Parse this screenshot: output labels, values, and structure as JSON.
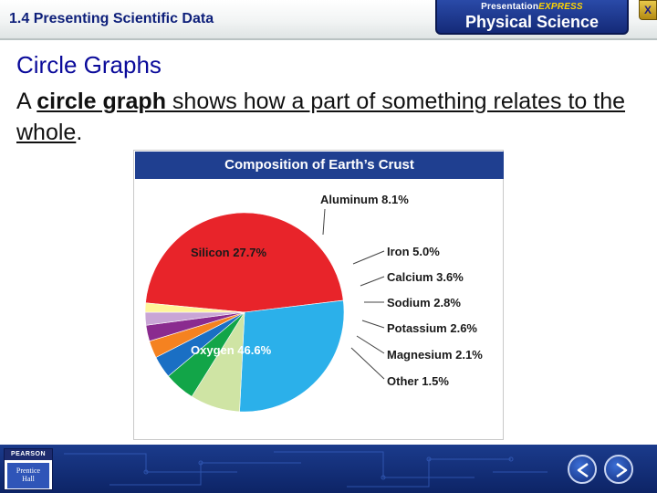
{
  "header": {
    "section_number": "1.4",
    "section_title": "Presenting Scientific Data",
    "brand_line_1a": "Presentation",
    "brand_line_1b": "EXPRESS",
    "brand_line_2": "Physical Science",
    "close_label": "X"
  },
  "content": {
    "heading": "Circle Graphs",
    "sentence_start": "A ",
    "sentence_term": "circle graph",
    "sentence_mid": " shows how a part of something relates to the whole",
    "sentence_end": "."
  },
  "footer": {
    "publisher": "PEARSON",
    "imprint_line_1": "Prentice",
    "imprint_line_2": "Hall"
  },
  "colors": {
    "oxygen": "#e8242a",
    "silicon": "#2bb0ea",
    "aluminum": "#cfe4a4",
    "iron": "#12a548",
    "calcium": "#1a6fc4",
    "sodium": "#f58220",
    "potassium": "#8a2b8f",
    "magnesium": "#c9a5d6",
    "other": "#fff59a"
  },
  "icons": {
    "back": "triangle-left-icon",
    "forward": "triangle-right-icon"
  },
  "chart_data": {
    "type": "pie",
    "title": "Composition of Earth’s Crust",
    "slices": [
      {
        "label": "Oxygen 46.6%",
        "name": "Oxygen",
        "value": 46.6,
        "color": "#e8242a"
      },
      {
        "label": "Silicon 27.7%",
        "name": "Silicon",
        "value": 27.7,
        "color": "#2bb0ea"
      },
      {
        "label": "Aluminum 8.1%",
        "name": "Aluminum",
        "value": 8.1,
        "color": "#cfe4a4"
      },
      {
        "label": "Iron 5.0%",
        "name": "Iron",
        "value": 5.0,
        "color": "#12a548"
      },
      {
        "label": "Calcium 3.6%",
        "name": "Calcium",
        "value": 3.6,
        "color": "#1a6fc4"
      },
      {
        "label": "Sodium 2.8%",
        "name": "Sodium",
        "value": 2.8,
        "color": "#f58220"
      },
      {
        "label": "Potassium 2.6%",
        "name": "Potassium",
        "value": 2.6,
        "color": "#8a2b8f"
      },
      {
        "label": "Magnesium 2.1%",
        "name": "Magnesium",
        "value": 2.1,
        "color": "#c9a5d6"
      },
      {
        "label": "Other 1.5%",
        "name": "Other",
        "value": 1.5,
        "color": "#fff59a"
      }
    ]
  }
}
